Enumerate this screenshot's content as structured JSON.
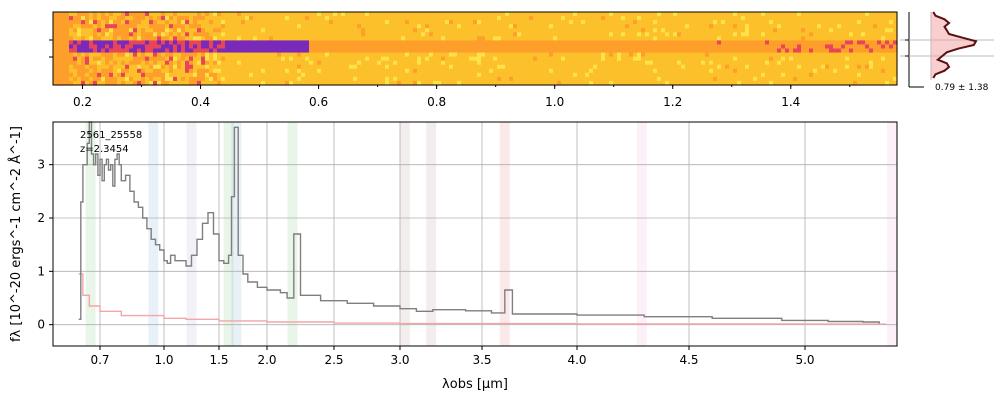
{
  "chart_data": [
    {
      "type": "heatmap",
      "panel": "2d-spectrum",
      "x_ticks": [
        "0.2",
        "0.4",
        "0.6",
        "0.8",
        "1.0",
        "1.2",
        "1.4"
      ],
      "x_tick_values": [
        0.2,
        0.4,
        0.6,
        0.8,
        1.0,
        1.2,
        1.4
      ],
      "xlim": [
        0.15,
        1.58
      ],
      "colormap": [
        "#1a0080",
        "#7a2ab8",
        "#e8455a",
        "#fd9f2a",
        "#fbc02a",
        "#ffe14a"
      ]
    },
    {
      "type": "line",
      "panel": "spatial-profile",
      "annotation": "0.79 ± 1.38",
      "profile": [
        0.05,
        0.1,
        0.3,
        0.4,
        0.3,
        0.35,
        0.4,
        0.7,
        1.0,
        0.95,
        0.6,
        0.35,
        0.25,
        0.15,
        0.35,
        0.4,
        0.3,
        0.1,
        0.05
      ]
    },
    {
      "type": "line",
      "panel": "1d-spectrum",
      "annotation_id": "2561_25558",
      "annotation_z": "z=2.3454",
      "xlabel": "λobs [μm]",
      "ylabel": "fλ [10^-20 ergs^-1 cm^-2 Å^-1]",
      "x_ticks": [
        "0.7",
        "1.0",
        "1.5",
        "2.0",
        "2.5",
        "3.0",
        "3.5",
        "4.0",
        "4.5",
        "5.0"
      ],
      "x_tick_values": [
        0.7,
        1.0,
        1.5,
        2.0,
        2.5,
        3.0,
        3.5,
        4.0,
        4.5,
        5.0
      ],
      "y_ticks": [
        "0",
        "1",
        "2",
        "3"
      ],
      "y_tick_values": [
        0,
        1,
        2,
        3
      ],
      "xlim": [
        0.56,
        5.4
      ],
      "ylim": [
        -0.4,
        3.8
      ],
      "grid": true,
      "series": [
        {
          "color": "#7f7f7f",
          "x": [
            0.6,
            0.61,
            0.62,
            0.64,
            0.65,
            0.66,
            0.67,
            0.68,
            0.69,
            0.7,
            0.71,
            0.72,
            0.73,
            0.74,
            0.75,
            0.76,
            0.77,
            0.78,
            0.79,
            0.8,
            0.82,
            0.84,
            0.86,
            0.88,
            0.9,
            0.92,
            0.94,
            0.96,
            0.98,
            1.0,
            1.03,
            1.06,
            1.1,
            1.15,
            1.2,
            1.25,
            1.3,
            1.35,
            1.4,
            1.45,
            1.5,
            1.55,
            1.6,
            1.63,
            1.66,
            1.7,
            1.75,
            1.8,
            1.9,
            2.0,
            2.1,
            2.15,
            2.2,
            2.25,
            2.4,
            2.6,
            2.8,
            3.0,
            3.1,
            3.2,
            3.4,
            3.55,
            3.62,
            3.66,
            3.75,
            4.0,
            4.3,
            4.6,
            4.9,
            5.1,
            5.25,
            5.32
          ],
          "y": [
            0.1,
            2.3,
            3.0,
            3.4,
            3.8,
            3.2,
            3.0,
            3.2,
            2.8,
            3.1,
            2.7,
            3.0,
            3.1,
            2.9,
            3.0,
            2.6,
            3.1,
            3.2,
            3.0,
            2.7,
            2.8,
            2.5,
            2.3,
            2.2,
            2.0,
            1.8,
            1.6,
            1.5,
            1.4,
            1.2,
            1.15,
            1.3,
            1.2,
            1.2,
            1.1,
            1.3,
            1.6,
            1.9,
            2.1,
            1.7,
            1.2,
            1.15,
            1.3,
            2.4,
            3.7,
            1.3,
            0.95,
            0.8,
            0.7,
            0.65,
            0.6,
            0.5,
            1.7,
            0.55,
            0.45,
            0.4,
            0.35,
            0.3,
            0.25,
            0.28,
            0.26,
            0.22,
            0.65,
            0.2,
            0.2,
            0.18,
            0.15,
            0.12,
            0.08,
            0.06,
            0.05,
            0.02
          ]
        },
        {
          "color": "#f4a6a6",
          "x": [
            0.6,
            0.62,
            0.65,
            0.7,
            0.8,
            1.0,
            1.2,
            1.5,
            2.0,
            2.5,
            3.0,
            4.0,
            5.0,
            5.35
          ],
          "y": [
            0.95,
            0.55,
            0.35,
            0.25,
            0.17,
            0.12,
            0.1,
            0.07,
            0.05,
            0.03,
            0.02,
            0.015,
            0.01,
            0.01
          ]
        }
      ],
      "line_markers": [
        {
          "x": 0.656,
          "color": "#2ca02c"
        },
        {
          "x": 0.95,
          "color": "#1f77b4"
        },
        {
          "x": 1.25,
          "color": "#9467bd"
        },
        {
          "x": 1.6,
          "color": "#2ca02c"
        },
        {
          "x": 1.68,
          "color": "#1f77b4"
        },
        {
          "x": 2.19,
          "color": "#2ca02c"
        },
        {
          "x": 3.03,
          "color": "#8c564b"
        },
        {
          "x": 3.19,
          "color": "#8c564b"
        },
        {
          "x": 3.62,
          "color": "#d62728"
        },
        {
          "x": 4.29,
          "color": "#e377c2"
        },
        {
          "x": 5.39,
          "color": "#e377c2"
        }
      ]
    }
  ]
}
